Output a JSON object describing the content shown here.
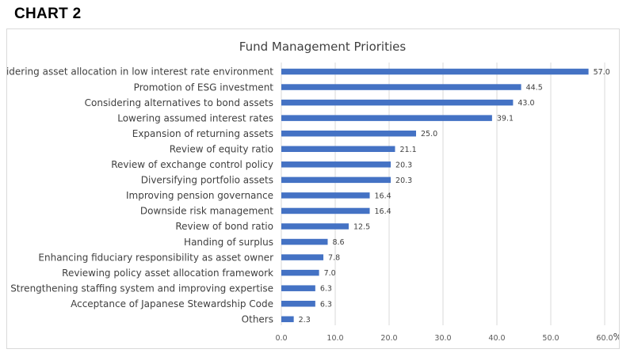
{
  "heading": "CHART 2",
  "chart_data": {
    "type": "bar",
    "orientation": "horizontal",
    "title": "Fund Management Priorities",
    "unit": "%",
    "categories": [
      "Considering asset allocation in low interest rate environment",
      "Promotion of ESG investment",
      "Considering alternatives to bond assets",
      "Lowering assumed interest rates",
      "Expansion of returning assets",
      "Review of equity ratio",
      "Review of exchange control policy",
      "Diversifying portfolio assets",
      "Improving pension governance",
      "Downside risk management",
      "Review of bond ratio",
      "Handing of surplus",
      "Enhancing fiduciary responsibility as asset owner",
      "Reviewing policy asset allocation framework",
      "Strengthening staffing system and improving expertise",
      "Acceptance of Japanese Stewardship Code",
      "Others"
    ],
    "values": [
      57.0,
      44.5,
      43.0,
      39.1,
      25.0,
      21.1,
      20.3,
      20.3,
      16.4,
      16.4,
      12.5,
      8.6,
      7.8,
      7.0,
      6.3,
      6.3,
      2.3
    ],
    "value_labels": [
      "57.0",
      "44.5",
      "43.0",
      "39.1",
      "25.0",
      "21.1",
      "20.3",
      "20.3",
      "16.4",
      "16.4",
      "12.5",
      "8.6",
      "7.8",
      "7.0",
      "6.3",
      "6.3",
      "2.3"
    ],
    "xlim": [
      0,
      60
    ],
    "xticks": [
      0,
      10,
      20,
      30,
      40,
      50,
      60
    ],
    "xtick_labels": [
      "0.0",
      "10.0",
      "20.0",
      "30.0",
      "40.0",
      "50.0",
      "60.0"
    ],
    "grid": true,
    "bar_color": "#4472c4",
    "grid_color": "#d9d9d9"
  }
}
